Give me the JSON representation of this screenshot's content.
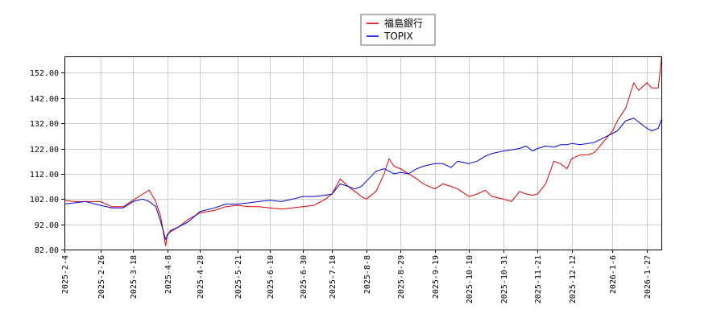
{
  "chart_data": {
    "type": "line",
    "title": "",
    "xlabel": "",
    "ylabel": "",
    "ylim": [
      82,
      158.5
    ],
    "y_ticks": [
      "82.00",
      "92.00",
      "102.00",
      "112.00",
      "122.00",
      "132.00",
      "142.00",
      "152.00"
    ],
    "x_tick_labels": [
      "2025-2-4",
      "2025-2-26",
      "2025-3-18",
      "2025-4-8",
      "2025-4-28",
      "2025-5-21",
      "2025-6-10",
      "2025-6-30",
      "2025-7-18",
      "2025-8-8",
      "2025-8-29",
      "2025-9-19",
      "2025-10-10",
      "2025-10-31",
      "2025-11-21",
      "2025-12-12",
      "2026-1-6",
      "2026-1-27"
    ],
    "grid": true,
    "legend_position": "top-center",
    "series": [
      {
        "name": "福島銀行",
        "color": "#dd0000",
        "points": [
          [
            "2025-2-4",
            101.5
          ],
          [
            "2025-2-10",
            101.0
          ],
          [
            "2025-2-17",
            101.0
          ],
          [
            "2025-2-26",
            101.0
          ],
          [
            "2025-3-5",
            99.0
          ],
          [
            "2025-3-12",
            99.0
          ],
          [
            "2025-3-18",
            101.5
          ],
          [
            "2025-3-24",
            104.0
          ],
          [
            "2025-3-28",
            105.5
          ],
          [
            "2025-4-1",
            101.0
          ],
          [
            "2025-4-4",
            95.0
          ],
          [
            "2025-4-7",
            83.5
          ],
          [
            "2025-4-8",
            88.0
          ],
          [
            "2025-4-10",
            89.0
          ],
          [
            "2025-4-15",
            91.0
          ],
          [
            "2025-4-21",
            94.0
          ],
          [
            "2025-4-28",
            96.5
          ],
          [
            "2025-5-7",
            97.5
          ],
          [
            "2025-5-14",
            99.0
          ],
          [
            "2025-5-21",
            99.5
          ],
          [
            "2025-5-28",
            99.0
          ],
          [
            "2025-6-3",
            99.0
          ],
          [
            "2025-6-10",
            98.5
          ],
          [
            "2025-6-17",
            98.0
          ],
          [
            "2025-6-24",
            98.5
          ],
          [
            "2025-6-30",
            99.0
          ],
          [
            "2025-7-7",
            99.5
          ],
          [
            "2025-7-14",
            102.0
          ],
          [
            "2025-7-18",
            104.0
          ],
          [
            "2025-7-23",
            110.0
          ],
          [
            "2025-7-28",
            107.0
          ],
          [
            "2025-8-1",
            105.0
          ],
          [
            "2025-8-5",
            103.0
          ],
          [
            "2025-8-8",
            102.0
          ],
          [
            "2025-8-14",
            105.0
          ],
          [
            "2025-8-19",
            112.0
          ],
          [
            "2025-8-22",
            118.0
          ],
          [
            "2025-8-25",
            115.0
          ],
          [
            "2025-8-29",
            114.0
          ],
          [
            "2025-9-3",
            112.0
          ],
          [
            "2025-9-8",
            110.0
          ],
          [
            "2025-9-12",
            108.0
          ],
          [
            "2025-9-19",
            106.0
          ],
          [
            "2025-9-24",
            108.0
          ],
          [
            "2025-9-29",
            107.0
          ],
          [
            "2025-10-3",
            106.0
          ],
          [
            "2025-10-10",
            103.0
          ],
          [
            "2025-10-15",
            104.0
          ],
          [
            "2025-10-20",
            105.5
          ],
          [
            "2025-10-24",
            103.0
          ],
          [
            "2025-10-31",
            102.0
          ],
          [
            "2025-11-5",
            101.0
          ],
          [
            "2025-11-10",
            105.0
          ],
          [
            "2025-11-14",
            104.0
          ],
          [
            "2025-11-18",
            103.5
          ],
          [
            "2025-11-21",
            104.0
          ],
          [
            "2025-11-26",
            108.0
          ],
          [
            "2025-12-1",
            117.0
          ],
          [
            "2025-12-5",
            116.0
          ],
          [
            "2025-12-9",
            114.0
          ],
          [
            "2025-12-12",
            118.0
          ],
          [
            "2025-12-17",
            119.5
          ],
          [
            "2025-12-22",
            119.5
          ],
          [
            "2025-12-26",
            120.5
          ],
          [
            "2026-1-6",
            129.0
          ],
          [
            "2026-1-9",
            133.0
          ],
          [
            "2026-1-14",
            138.0
          ],
          [
            "2026-1-19",
            148.0
          ],
          [
            "2026-1-22",
            145.0
          ],
          [
            "2026-1-27",
            148.0
          ],
          [
            "2026-1-30",
            146.0
          ],
          [
            "2026-2-3",
            146.0
          ],
          [
            "2026-2-5",
            158.0
          ]
        ]
      },
      {
        "name": "TOPIX",
        "color": "#0000dd",
        "points": [
          [
            "2025-2-4",
            100.0
          ],
          [
            "2025-2-10",
            100.5
          ],
          [
            "2025-2-17",
            101.0
          ],
          [
            "2025-2-26",
            99.5
          ],
          [
            "2025-3-5",
            98.5
          ],
          [
            "2025-3-12",
            98.5
          ],
          [
            "2025-3-18",
            101.0
          ],
          [
            "2025-3-24",
            102.0
          ],
          [
            "2025-3-28",
            101.0
          ],
          [
            "2025-4-1",
            99.0
          ],
          [
            "2025-4-4",
            93.0
          ],
          [
            "2025-4-7",
            86.0
          ],
          [
            "2025-4-8",
            87.5
          ],
          [
            "2025-4-10",
            89.5
          ],
          [
            "2025-4-15",
            91.0
          ],
          [
            "2025-4-21",
            93.0
          ],
          [
            "2025-4-28",
            97.0
          ],
          [
            "2025-5-7",
            98.5
          ],
          [
            "2025-5-14",
            100.0
          ],
          [
            "2025-5-21",
            100.0
          ],
          [
            "2025-5-28",
            100.5
          ],
          [
            "2025-6-3",
            101.0
          ],
          [
            "2025-6-10",
            101.5
          ],
          [
            "2025-6-17",
            101.0
          ],
          [
            "2025-6-24",
            102.0
          ],
          [
            "2025-6-30",
            103.0
          ],
          [
            "2025-7-7",
            103.0
          ],
          [
            "2025-7-14",
            103.5
          ],
          [
            "2025-7-18",
            104.0
          ],
          [
            "2025-7-23",
            108.0
          ],
          [
            "2025-7-28",
            107.0
          ],
          [
            "2025-8-1",
            106.0
          ],
          [
            "2025-8-5",
            107.0
          ],
          [
            "2025-8-8",
            109.0
          ],
          [
            "2025-8-14",
            113.0
          ],
          [
            "2025-8-19",
            114.0
          ],
          [
            "2025-8-22",
            113.0
          ],
          [
            "2025-8-25",
            112.0
          ],
          [
            "2025-8-29",
            112.5
          ],
          [
            "2025-9-3",
            112.0
          ],
          [
            "2025-9-8",
            114.0
          ],
          [
            "2025-9-12",
            115.0
          ],
          [
            "2025-9-19",
            116.0
          ],
          [
            "2025-9-24",
            116.0
          ],
          [
            "2025-9-29",
            114.5
          ],
          [
            "2025-10-3",
            117.0
          ],
          [
            "2025-10-10",
            116.0
          ],
          [
            "2025-10-15",
            117.0
          ],
          [
            "2025-10-20",
            119.0
          ],
          [
            "2025-10-24",
            120.0
          ],
          [
            "2025-10-31",
            121.0
          ],
          [
            "2025-11-5",
            121.5
          ],
          [
            "2025-11-10",
            122.0
          ],
          [
            "2025-11-14",
            123.0
          ],
          [
            "2025-11-18",
            121.0
          ],
          [
            "2025-11-21",
            122.0
          ],
          [
            "2025-11-26",
            123.0
          ],
          [
            "2025-12-1",
            122.5
          ],
          [
            "2025-12-5",
            123.5
          ],
          [
            "2025-12-9",
            123.5
          ],
          [
            "2025-12-12",
            124.0
          ],
          [
            "2025-12-17",
            123.5
          ],
          [
            "2025-12-22",
            124.0
          ],
          [
            "2025-12-26",
            124.5
          ],
          [
            "2026-1-6",
            128.0
          ],
          [
            "2026-1-9",
            129.0
          ],
          [
            "2026-1-14",
            133.0
          ],
          [
            "2026-1-19",
            134.0
          ],
          [
            "2026-1-22",
            132.5
          ],
          [
            "2026-1-27",
            130.0
          ],
          [
            "2026-1-30",
            129.0
          ],
          [
            "2026-2-3",
            130.0
          ],
          [
            "2026-2-5",
            133.5
          ]
        ]
      }
    ]
  }
}
